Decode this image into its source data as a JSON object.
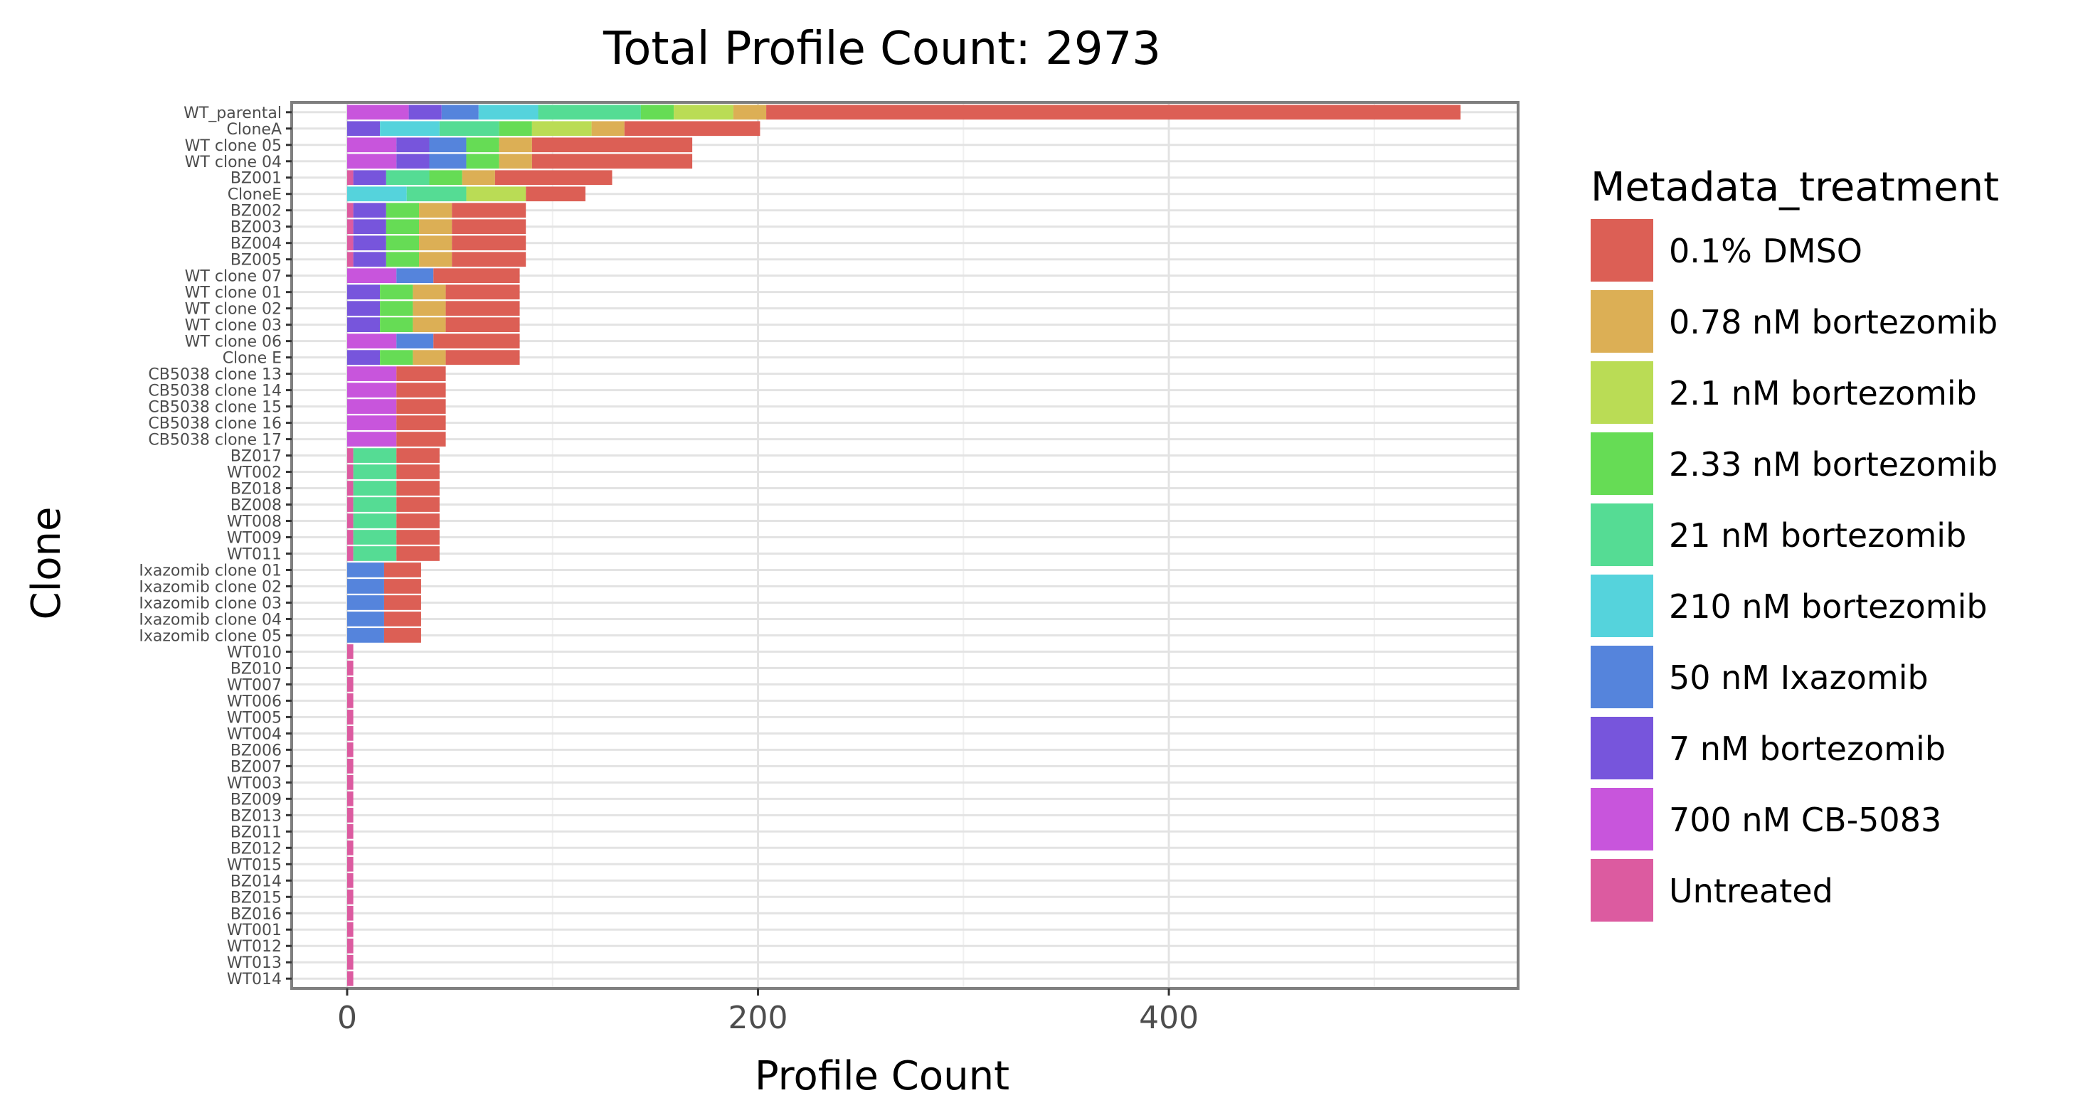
{
  "chart_data": {
    "type": "bar",
    "orientation": "horizontal",
    "stacked": true,
    "title": "Total Profile Count: 2973",
    "xlabel": "Profile Count",
    "ylabel": "Clone",
    "xlim": [
      -27,
      570
    ],
    "xticks": [
      0,
      200,
      400
    ],
    "grid": true,
    "legend": {
      "title": "Metadata_treatment",
      "position": "right"
    },
    "categories": [
      "WT_parental",
      "CloneA",
      "WT clone 05",
      "WT clone 04",
      "BZ001",
      "CloneE",
      "BZ002",
      "BZ003",
      "BZ004",
      "BZ005",
      "WT clone 07",
      "WT clone 01",
      "WT clone 02",
      "WT clone 03",
      "WT clone 06",
      "Clone E",
      "CB5038 clone 13",
      "CB5038 clone 14",
      "CB5038 clone 15",
      "CB5038 clone 16",
      "CB5038 clone 17",
      "BZ017",
      "WT002",
      "BZ018",
      "BZ008",
      "WT008",
      "WT009",
      "WT011",
      "Ixazomib clone 01",
      "Ixazomib clone 02",
      "Ixazomib clone 03",
      "Ixazomib clone 04",
      "Ixazomib clone 05",
      "WT010",
      "BZ010",
      "WT007",
      "WT006",
      "WT005",
      "WT004",
      "BZ006",
      "BZ007",
      "WT003",
      "BZ009",
      "BZ013",
      "BZ011",
      "BZ012",
      "WT015",
      "BZ014",
      "BZ015",
      "BZ016",
      "WT001",
      "WT012",
      "WT013",
      "WT014"
    ],
    "series": [
      {
        "name": "Untreated",
        "color": "#DC5BA0",
        "values": [
          0,
          0,
          0,
          0,
          3,
          0,
          3,
          3,
          3,
          3,
          0,
          0,
          0,
          0,
          0,
          0,
          0,
          0,
          0,
          0,
          0,
          3,
          3,
          3,
          3,
          3,
          3,
          3,
          0,
          0,
          0,
          0,
          0,
          3,
          3,
          3,
          3,
          3,
          3,
          3,
          3,
          3,
          3,
          3,
          3,
          3,
          3,
          3,
          3,
          3,
          3,
          3,
          3,
          3
        ]
      },
      {
        "name": "700 nM CB-5083",
        "color": "#C855DC",
        "values": [
          30,
          0,
          24,
          24,
          0,
          0,
          0,
          0,
          0,
          0,
          24,
          0,
          0,
          0,
          24,
          0,
          24,
          24,
          24,
          24,
          24,
          0,
          0,
          0,
          0,
          0,
          0,
          0,
          0,
          0,
          0,
          0,
          0,
          0,
          0,
          0,
          0,
          0,
          0,
          0,
          0,
          0,
          0,
          0,
          0,
          0,
          0,
          0,
          0,
          0,
          0,
          0,
          0,
          0
        ]
      },
      {
        "name": "7 nM bortezomib",
        "color": "#7755DC",
        "values": [
          16,
          16,
          16,
          16,
          16,
          0,
          16,
          16,
          16,
          16,
          0,
          16,
          16,
          16,
          0,
          16,
          0,
          0,
          0,
          0,
          0,
          0,
          0,
          0,
          0,
          0,
          0,
          0,
          0,
          0,
          0,
          0,
          0,
          0,
          0,
          0,
          0,
          0,
          0,
          0,
          0,
          0,
          0,
          0,
          0,
          0,
          0,
          0,
          0,
          0,
          0,
          0,
          0,
          0
        ]
      },
      {
        "name": "50 nM Ixazomib",
        "color": "#5584DC",
        "values": [
          18,
          0,
          18,
          18,
          0,
          0,
          0,
          0,
          0,
          0,
          18,
          0,
          0,
          0,
          18,
          0,
          0,
          0,
          0,
          0,
          0,
          0,
          0,
          0,
          0,
          0,
          0,
          0,
          18,
          18,
          18,
          18,
          18,
          0,
          0,
          0,
          0,
          0,
          0,
          0,
          0,
          0,
          0,
          0,
          0,
          0,
          0,
          0,
          0,
          0,
          0,
          0,
          0,
          0
        ]
      },
      {
        "name": "210 nM bortezomib",
        "color": "#55D3DC",
        "values": [
          29,
          29,
          0,
          0,
          0,
          29,
          0,
          0,
          0,
          0,
          0,
          0,
          0,
          0,
          0,
          0,
          0,
          0,
          0,
          0,
          0,
          0,
          0,
          0,
          0,
          0,
          0,
          0,
          0,
          0,
          0,
          0,
          0,
          0,
          0,
          0,
          0,
          0,
          0,
          0,
          0,
          0,
          0,
          0,
          0,
          0,
          0,
          0,
          0,
          0,
          0,
          0,
          0,
          0
        ]
      },
      {
        "name": "21 nM bortezomib",
        "color": "#55DC94",
        "values": [
          50,
          29,
          0,
          0,
          21,
          29,
          0,
          0,
          0,
          0,
          0,
          0,
          0,
          0,
          0,
          0,
          0,
          0,
          0,
          0,
          0,
          21,
          21,
          21,
          21,
          21,
          21,
          21,
          0,
          0,
          0,
          0,
          0,
          0,
          0,
          0,
          0,
          0,
          0,
          0,
          0,
          0,
          0,
          0,
          0,
          0,
          0,
          0,
          0,
          0,
          0,
          0,
          0,
          0
        ]
      },
      {
        "name": "2.33 nM bortezomib",
        "color": "#66DC55",
        "values": [
          16,
          16,
          16,
          16,
          16,
          0,
          16,
          16,
          16,
          16,
          0,
          16,
          16,
          16,
          0,
          16,
          0,
          0,
          0,
          0,
          0,
          0,
          0,
          0,
          0,
          0,
          0,
          0,
          0,
          0,
          0,
          0,
          0,
          0,
          0,
          0,
          0,
          0,
          0,
          0,
          0,
          0,
          0,
          0,
          0,
          0,
          0,
          0,
          0,
          0,
          0,
          0,
          0,
          0
        ]
      },
      {
        "name": "2.1 nM bortezomib",
        "color": "#BADC55",
        "values": [
          29,
          29,
          0,
          0,
          0,
          29,
          0,
          0,
          0,
          0,
          0,
          0,
          0,
          0,
          0,
          0,
          0,
          0,
          0,
          0,
          0,
          0,
          0,
          0,
          0,
          0,
          0,
          0,
          0,
          0,
          0,
          0,
          0,
          0,
          0,
          0,
          0,
          0,
          0,
          0,
          0,
          0,
          0,
          0,
          0,
          0,
          0,
          0,
          0,
          0,
          0,
          0,
          0,
          0
        ]
      },
      {
        "name": "0.78 nM bortezomib",
        "color": "#DCAF55",
        "values": [
          16,
          16,
          16,
          16,
          16,
          0,
          16,
          16,
          16,
          16,
          0,
          16,
          16,
          16,
          0,
          16,
          0,
          0,
          0,
          0,
          0,
          0,
          0,
          0,
          0,
          0,
          0,
          0,
          0,
          0,
          0,
          0,
          0,
          0,
          0,
          0,
          0,
          0,
          0,
          0,
          0,
          0,
          0,
          0,
          0,
          0,
          0,
          0,
          0,
          0,
          0,
          0,
          0,
          0
        ]
      },
      {
        "name": "0.1% DMSO",
        "color": "#DC5F55",
        "values": [
          338,
          66,
          78,
          78,
          57,
          29,
          36,
          36,
          36,
          36,
          42,
          36,
          36,
          36,
          42,
          36,
          24,
          24,
          24,
          24,
          24,
          21,
          21,
          21,
          21,
          21,
          21,
          21,
          18,
          18,
          18,
          18,
          18,
          0,
          0,
          0,
          0,
          0,
          0,
          0,
          0,
          0,
          0,
          0,
          0,
          0,
          0,
          0,
          0,
          0,
          0,
          0,
          0,
          0
        ]
      }
    ],
    "legend_order": [
      "0.1% DMSO",
      "0.78 nM bortezomib",
      "2.1 nM bortezomib",
      "2.33 nM bortezomib",
      "21 nM bortezomib",
      "210 nM bortezomib",
      "50 nM Ixazomib",
      "7 nM bortezomib",
      "700 nM CB-5083",
      "Untreated"
    ]
  }
}
